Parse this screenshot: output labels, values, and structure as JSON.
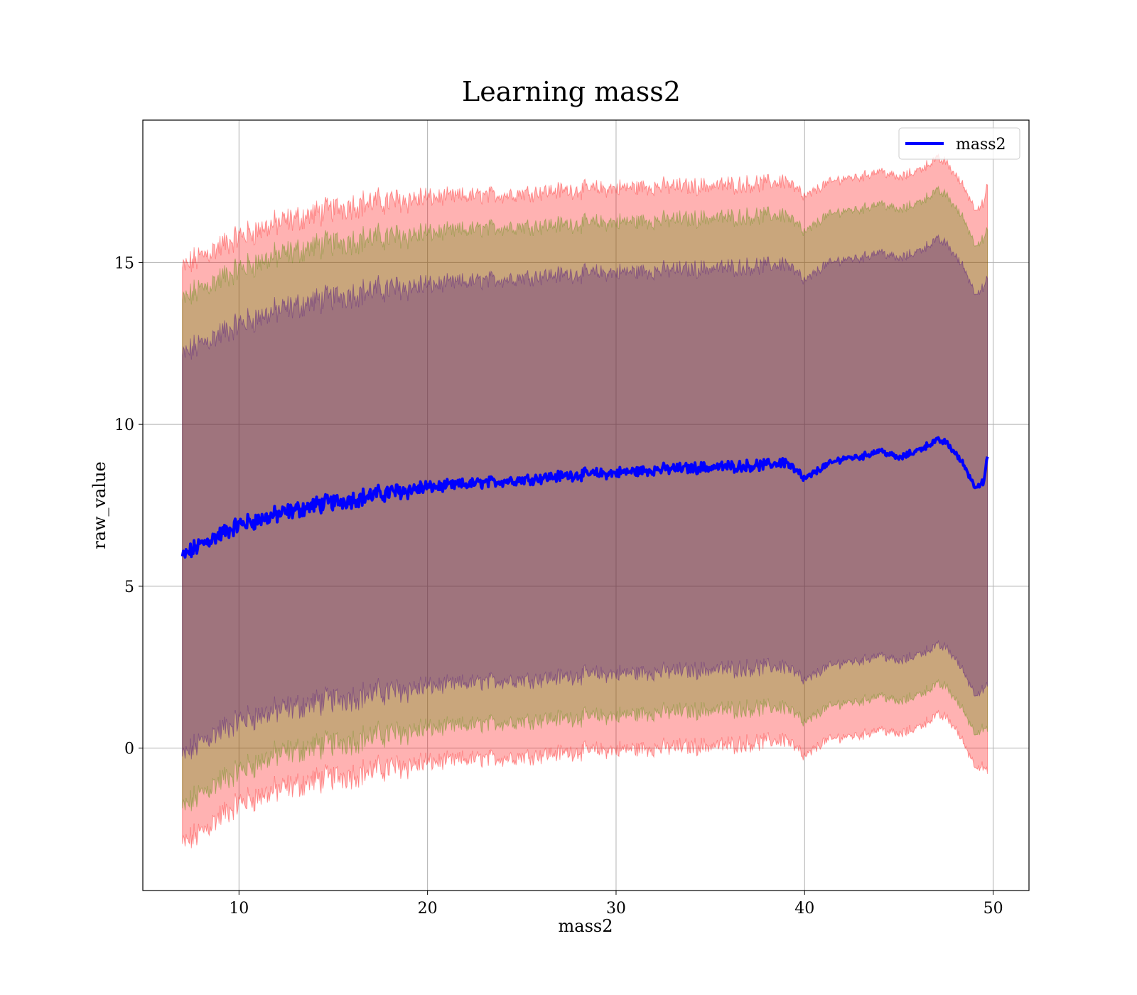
{
  "chart_data": {
    "type": "line",
    "title": "Learning mass2",
    "xlabel": "mass2",
    "ylabel": "raw_value",
    "xlim": [
      4.9,
      51.9
    ],
    "ylim": [
      -4.4,
      19.4
    ],
    "xticks": [
      10,
      20,
      30,
      40,
      50
    ],
    "yticks": [
      0,
      5,
      10,
      15
    ],
    "grid": true,
    "legend": {
      "position": "top-right",
      "entries": [
        "mass2"
      ]
    },
    "x_range": [
      7.0,
      49.7
    ],
    "series": [
      {
        "name": "mass2",
        "color": "#0000ff",
        "x": [
          7.0,
          8.0,
          9.0,
          10.0,
          12.0,
          14.0,
          16.0,
          18.0,
          20.0,
          22.0,
          24.0,
          26.0,
          28.0,
          30.0,
          32.0,
          34.0,
          36.0,
          38.0,
          39.0,
          40.0,
          41.0,
          42.0,
          43.0,
          44.0,
          45.0,
          46.0,
          47.0,
          47.5,
          48.0,
          48.5,
          49.0,
          49.5,
          49.7
        ],
        "values": [
          5.9,
          6.3,
          6.6,
          6.9,
          7.2,
          7.5,
          7.7,
          7.9,
          8.05,
          8.15,
          8.25,
          8.35,
          8.45,
          8.5,
          8.6,
          8.65,
          8.7,
          8.75,
          8.85,
          8.3,
          8.7,
          8.95,
          9.0,
          9.2,
          8.95,
          9.2,
          9.5,
          9.45,
          9.1,
          8.7,
          8.1,
          8.2,
          9.0
        ]
      }
    ],
    "bands": [
      {
        "color": "#ff0000",
        "opacity": 0.3,
        "lower": [
          -3.0,
          -2.6,
          -2.1,
          -1.7,
          -1.3,
          -1.0,
          -0.8,
          -0.6,
          -0.45,
          -0.35,
          -0.3,
          -0.2,
          -0.1,
          -0.05,
          0.0,
          0.05,
          0.1,
          0.2,
          0.3,
          -0.3,
          0.2,
          0.35,
          0.4,
          0.6,
          0.4,
          0.65,
          1.0,
          0.95,
          0.6,
          0.1,
          -0.5,
          -0.6,
          -0.8
        ],
        "upper": [
          14.8,
          15.2,
          15.5,
          15.8,
          16.2,
          16.5,
          16.8,
          16.9,
          17.0,
          17.05,
          17.1,
          17.2,
          17.25,
          17.3,
          17.35,
          17.35,
          17.4,
          17.45,
          17.55,
          17.0,
          17.4,
          17.6,
          17.65,
          17.85,
          17.6,
          17.85,
          18.2,
          18.1,
          17.7,
          17.3,
          16.7,
          16.8,
          17.4
        ]
      },
      {
        "color": "#4d8b00",
        "opacity": 0.3,
        "lower": [
          -1.9,
          -1.4,
          -1.0,
          -0.7,
          -0.2,
          0.05,
          0.25,
          0.45,
          0.6,
          0.7,
          0.8,
          0.9,
          0.95,
          1.0,
          1.1,
          1.15,
          1.2,
          1.25,
          1.3,
          0.75,
          1.2,
          1.4,
          1.45,
          1.65,
          1.4,
          1.65,
          1.95,
          1.9,
          1.5,
          1.1,
          0.5,
          0.6,
          0.5
        ],
        "upper": [
          13.8,
          14.2,
          14.5,
          14.8,
          15.2,
          15.5,
          15.7,
          15.8,
          15.9,
          16.0,
          16.1,
          16.15,
          16.2,
          16.25,
          16.3,
          16.35,
          16.4,
          16.45,
          16.5,
          15.9,
          16.4,
          16.6,
          16.65,
          16.85,
          16.6,
          16.85,
          17.2,
          17.1,
          16.7,
          16.3,
          15.6,
          15.7,
          16.0
        ]
      },
      {
        "color": "#400080",
        "opacity": 0.3,
        "lower": [
          -0.3,
          0.2,
          0.55,
          0.85,
          1.15,
          1.4,
          1.6,
          1.75,
          1.9,
          2.0,
          2.1,
          2.15,
          2.25,
          2.3,
          2.35,
          2.4,
          2.45,
          2.5,
          2.55,
          2.05,
          2.45,
          2.65,
          2.7,
          2.9,
          2.65,
          2.9,
          3.15,
          3.1,
          2.75,
          2.3,
          1.7,
          1.8,
          1.9
        ],
        "upper": [
          12.1,
          12.5,
          12.8,
          13.1,
          13.5,
          13.8,
          14.05,
          14.2,
          14.3,
          14.4,
          14.5,
          14.6,
          14.65,
          14.7,
          14.75,
          14.8,
          14.85,
          14.9,
          15.0,
          14.4,
          14.9,
          15.1,
          15.15,
          15.35,
          15.1,
          15.35,
          15.7,
          15.6,
          15.2,
          14.8,
          14.1,
          14.2,
          14.5
        ]
      }
    ]
  }
}
